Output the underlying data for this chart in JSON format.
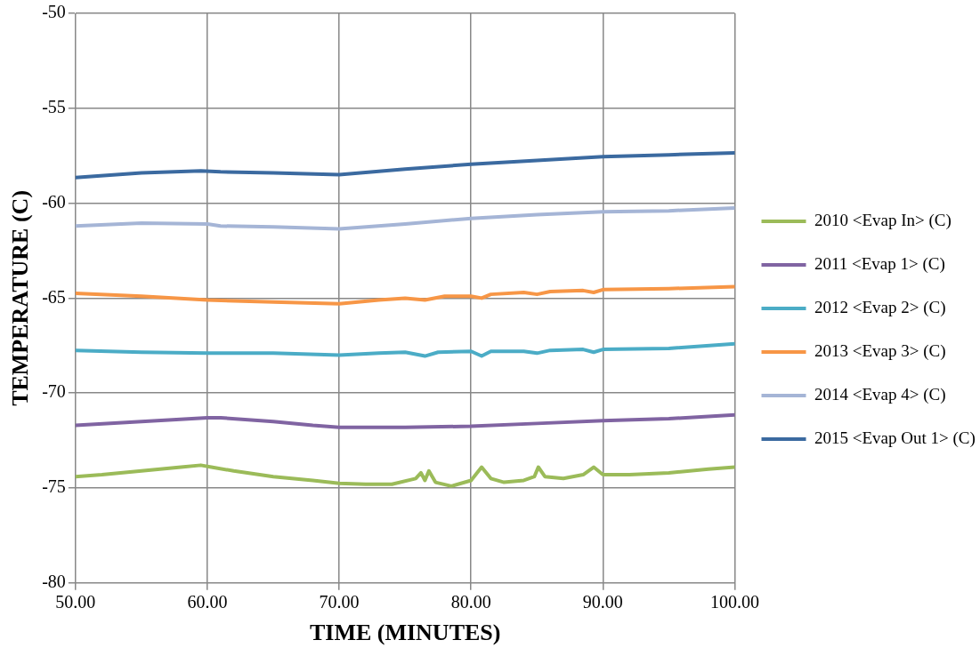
{
  "chart_data": {
    "type": "line",
    "xlabel": "TIME (MINUTES)",
    "ylabel": "TEMPERATURE (C)",
    "xlim": [
      50,
      100
    ],
    "xticks": [
      {
        "value": 50,
        "label": "50.00"
      },
      {
        "value": 60,
        "label": "60.00"
      },
      {
        "value": 70,
        "label": "70.00"
      },
      {
        "value": 80,
        "label": "80.00"
      },
      {
        "value": 90,
        "label": "90.00"
      },
      {
        "value": 100,
        "label": "100.00"
      }
    ],
    "ylim": [
      -80,
      -50
    ],
    "yticks": [
      -80,
      -75,
      -70,
      -65,
      -60,
      -55,
      -50
    ],
    "grid": true,
    "legend": "right",
    "marker": "none",
    "line_style": "solid",
    "series": [
      {
        "name": "2010 <Evap In> (C)",
        "color": "#9bbb59",
        "x": [
          50,
          52,
          55,
          58,
          59.5,
          60.3,
          62,
          65,
          68,
          70,
          72,
          74,
          75.8,
          76.2,
          76.5,
          76.8,
          77.3,
          78.5,
          80,
          80.8,
          81.5,
          82.5,
          84,
          84.8,
          85.1,
          85.6,
          87,
          88.5,
          89.3,
          90,
          92,
          95,
          98,
          100
        ],
        "values": [
          -74.4,
          -74.3,
          -74.1,
          -73.9,
          -73.8,
          -73.9,
          -74.1,
          -74.4,
          -74.6,
          -74.75,
          -74.8,
          -74.8,
          -74.5,
          -74.2,
          -74.6,
          -74.1,
          -74.7,
          -74.9,
          -74.6,
          -73.9,
          -74.5,
          -74.7,
          -74.6,
          -74.4,
          -73.9,
          -74.4,
          -74.5,
          -74.3,
          -73.9,
          -74.3,
          -74.3,
          -74.2,
          -74.0,
          -73.9
        ]
      },
      {
        "name": "2011 <Evap 1> (C)",
        "color": "#8064a2",
        "x": [
          50,
          55,
          60,
          61,
          65,
          68,
          70,
          75,
          80,
          85,
          90,
          95,
          100
        ],
        "values": [
          -71.7,
          -71.5,
          -71.3,
          -71.3,
          -71.5,
          -71.7,
          -71.8,
          -71.8,
          -71.75,
          -71.6,
          -71.45,
          -71.35,
          -71.15
        ]
      },
      {
        "name": "2012 <Evap 2> (C)",
        "color": "#4bacc6",
        "x": [
          50,
          55,
          60,
          65,
          70,
          73,
          75,
          76.5,
          77.5,
          80,
          80.8,
          81.5,
          84,
          85,
          86,
          88.5,
          89.3,
          90,
          95,
          100
        ],
        "values": [
          -67.75,
          -67.85,
          -67.9,
          -67.9,
          -68.0,
          -67.9,
          -67.85,
          -68.05,
          -67.85,
          -67.8,
          -68.05,
          -67.8,
          -67.8,
          -67.9,
          -67.75,
          -67.7,
          -67.85,
          -67.7,
          -67.65,
          -67.4
        ]
      },
      {
        "name": "2013 <Evap 3> (C)",
        "color": "#f79646",
        "x": [
          50,
          55,
          60,
          65,
          70,
          73,
          75,
          76.5,
          78,
          80,
          80.8,
          81.5,
          84,
          85,
          86,
          88.5,
          89.3,
          90,
          95,
          100
        ],
        "values": [
          -64.75,
          -64.9,
          -65.1,
          -65.2,
          -65.3,
          -65.1,
          -65.0,
          -65.1,
          -64.9,
          -64.9,
          -65.0,
          -64.8,
          -64.7,
          -64.8,
          -64.65,
          -64.6,
          -64.7,
          -64.55,
          -64.5,
          -64.4
        ]
      },
      {
        "name": "2014 <Evap 4> (C)",
        "color": "#a5b5d6",
        "x": [
          50,
          55,
          60,
          61,
          65,
          70,
          75,
          80,
          85,
          90,
          95,
          100
        ],
        "values": [
          -61.2,
          -61.05,
          -61.1,
          -61.2,
          -61.25,
          -61.35,
          -61.1,
          -60.8,
          -60.6,
          -60.45,
          -60.4,
          -60.25
        ]
      },
      {
        "name": "2015 <Evap Out 1> (C)",
        "color": "#3b6aa0",
        "x": [
          50,
          55,
          59.5,
          61,
          65,
          70,
          75,
          80,
          85,
          90,
          95,
          100
        ],
        "values": [
          -58.65,
          -58.4,
          -58.3,
          -58.35,
          -58.4,
          -58.5,
          -58.2,
          -57.95,
          -57.75,
          -57.55,
          -57.45,
          -57.35
        ]
      }
    ]
  }
}
